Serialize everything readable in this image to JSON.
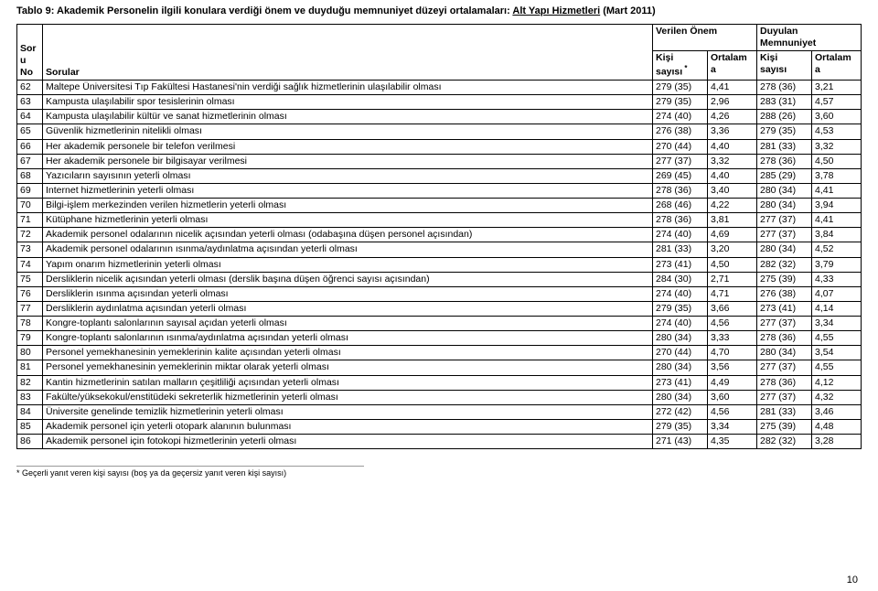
{
  "title_prefix": "Tablo 9: Akademik Personelin ilgili konulara verdiği önem ve duyduğu memnuniyet düzeyi ortalamaları: ",
  "title_underline": "Alt Yapı Hizmetleri",
  "title_suffix": "  (Mart 2011)",
  "header": {
    "soru_no": "Sor\nu\nNo",
    "sorular": "Sorular",
    "verilen_onem": "Verilen Önem",
    "duyulan_memnuniyet": "Duyulan\nMemnuniyet",
    "kisi_sayisi": "Kişi\nsayısı",
    "kisi_sayisi_star": "Kişi\nsayısı *",
    "ortalama": "Ortalam\na"
  },
  "rows": [
    {
      "no": "62",
      "q": "Maltepe Üniversitesi Tıp Fakültesi Hastanesi'nin verdiği sağlık hizmetlerinin ulaşılabilir olması",
      "k1": "279 (35)",
      "o1": "4,41",
      "k2": "278 (36)",
      "o2": "3,21"
    },
    {
      "no": "63",
      "q": "Kampusta ulaşılabilir spor tesislerinin olması",
      "k1": "279 (35)",
      "o1": "2,96",
      "k2": "283 (31)",
      "o2": "4,57"
    },
    {
      "no": "64",
      "q": "Kampusta ulaşılabilir kültür ve sanat hizmetlerinin olması",
      "k1": "274 (40)",
      "o1": "4,26",
      "k2": "288 (26)",
      "o2": "3,60"
    },
    {
      "no": "65",
      "q": "Güvenlik hizmetlerinin nitelikli olması",
      "k1": "276 (38)",
      "o1": "3,36",
      "k2": "279 (35)",
      "o2": "4,53"
    },
    {
      "no": "66",
      "q": "Her akademik personele bir telefon verilmesi",
      "k1": "270 (44)",
      "o1": "4,40",
      "k2": "281 (33)",
      "o2": "3,32"
    },
    {
      "no": "67",
      "q": "Her akademik personele bir bilgisayar verilmesi",
      "k1": "277 (37)",
      "o1": "3,32",
      "k2": "278 (36)",
      "o2": "4,50"
    },
    {
      "no": "68",
      "q": "Yazıcıların sayısının yeterli olması",
      "k1": "269 (45)",
      "o1": "4,40",
      "k2": "285 (29)",
      "o2": "3,78"
    },
    {
      "no": "69",
      "q": "Internet hizmetlerinin yeterli olması",
      "k1": "278 (36)",
      "o1": "3,40",
      "k2": "280 (34)",
      "o2": "4,41"
    },
    {
      "no": "70",
      "q": "Bilgi-işlem merkezinden verilen hizmetlerin yeterli olması",
      "k1": "268 (46)",
      "o1": "4,22",
      "k2": "280 (34)",
      "o2": "3,94"
    },
    {
      "no": "71",
      "q": "Kütüphane hizmetlerinin yeterli olması",
      "k1": "278 (36)",
      "o1": "3,81",
      "k2": "277 (37)",
      "o2": "4,41"
    },
    {
      "no": "72",
      "q": "Akademik personel odalarının nicelik açısından yeterli olması (odabaşına düşen personel açısından)",
      "k1": "274 (40)",
      "o1": "4,69",
      "k2": "277 (37)",
      "o2": "3,84"
    },
    {
      "no": "73",
      "q": "Akademik personel odalarının ısınma/aydınlatma açısından yeterli olması",
      "k1": "281 (33)",
      "o1": "3,20",
      "k2": "280 (34)",
      "o2": "4,52"
    },
    {
      "no": "74",
      "q": "Yapım onarım hizmetlerinin yeterli olması",
      "k1": "273 (41)",
      "o1": "4,50",
      "k2": "282 (32)",
      "o2": "3,79"
    },
    {
      "no": "75",
      "q": "Dersliklerin nicelik açısından yeterli olması (derslik başına düşen öğrenci sayısı açısından)",
      "k1": "284 (30)",
      "o1": "2,71",
      "k2": "275 (39)",
      "o2": "4,33"
    },
    {
      "no": "76",
      "q": "Dersliklerin ısınma açısından yeterli olması",
      "k1": "274 (40)",
      "o1": "4,71",
      "k2": "276 (38)",
      "o2": "4,07"
    },
    {
      "no": "77",
      "q": "Dersliklerin aydınlatma açısından yeterli olması",
      "k1": "279 (35)",
      "o1": "3,66",
      "k2": "273 (41)",
      "o2": "4,14"
    },
    {
      "no": "78",
      "q": "Kongre-toplantı salonlarının sayısal açıdan yeterli olması",
      "k1": "274 (40)",
      "o1": "4,56",
      "k2": "277 (37)",
      "o2": "3,34"
    },
    {
      "no": "79",
      "q": "Kongre-toplantı salonlarının ısınma/aydınlatma açısından yeterli olması",
      "k1": "280 (34)",
      "o1": "3,33",
      "k2": "278 (36)",
      "o2": "4,55"
    },
    {
      "no": "80",
      "q": "Personel yemekhanesinin yemeklerinin kalite açısından yeterli olması",
      "k1": "270 (44)",
      "o1": "4,70",
      "k2": "280 (34)",
      "o2": "3,54"
    },
    {
      "no": "81",
      "q": "Personel yemekhanesinin yemeklerinin miktar olarak yeterli olması",
      "k1": "280 (34)",
      "o1": "3,56",
      "k2": "277 (37)",
      "o2": "4,55"
    },
    {
      "no": "82",
      "q": "Kantin hizmetlerinin satılan malların çeşitliliği açısından yeterli olması",
      "k1": "273 (41)",
      "o1": "4,49",
      "k2": "278 (36)",
      "o2": "4,12"
    },
    {
      "no": "83",
      "q": "Fakülte/yüksekokul/enstitüdeki sekreterlik hizmetlerinin yeterli olması",
      "k1": "280 (34)",
      "o1": "3,60",
      "k2": "277 (37)",
      "o2": "4,32"
    },
    {
      "no": "84",
      "q": "Üniversite genelinde temizlik hizmetlerinin yeterli olması",
      "k1": "272 (42)",
      "o1": "4,56",
      "k2": "281 (33)",
      "o2": "3,46"
    },
    {
      "no": "85",
      "q": "Akademik personel için yeterli otopark alanının bulunması",
      "k1": "279 (35)",
      "o1": "3,34",
      "k2": "275 (39)",
      "o2": "4,48"
    },
    {
      "no": "86",
      "q": "Akademik personel için fotokopi hizmetlerinin yeterli olması",
      "k1": "271 (43)",
      "o1": "4,35",
      "k2": "282 (32)",
      "o2": "3,28"
    }
  ],
  "footnote": "* Geçerli yanıt veren kişi sayısı (boş ya da geçersiz yanıt veren kişi sayısı)",
  "page_number": "10",
  "colors": {
    "text": "#000000",
    "background": "#ffffff",
    "border": "#000000"
  }
}
